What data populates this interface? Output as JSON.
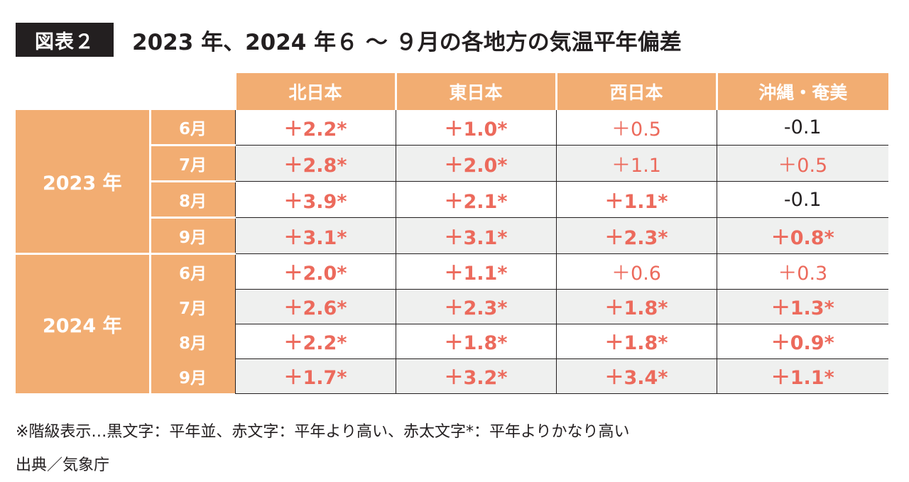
{
  "figure": {
    "badge": "図表２",
    "title": "2023 年、2024 年６ 〜 ９月の各地方の気温平年偏差"
  },
  "columns": [
    "北日本",
    "東日本",
    "西日本",
    "沖縄・奄美"
  ],
  "groups": [
    {
      "year": "2023 年",
      "rows": [
        {
          "month": "6月",
          "values": [
            {
              "text": "＋2.2*",
              "style": "strong"
            },
            {
              "text": "＋1.0*",
              "style": "strong"
            },
            {
              "text": "＋0.5",
              "style": "light"
            },
            {
              "text": "-0.1",
              "style": "plain"
            }
          ]
        },
        {
          "month": "7月",
          "values": [
            {
              "text": "＋2.8*",
              "style": "strong"
            },
            {
              "text": "＋2.0*",
              "style": "strong"
            },
            {
              "text": "＋1.1",
              "style": "light"
            },
            {
              "text": "＋0.5",
              "style": "light"
            }
          ]
        },
        {
          "month": "8月",
          "values": [
            {
              "text": "＋3.9*",
              "style": "strong"
            },
            {
              "text": "＋2.1*",
              "style": "strong"
            },
            {
              "text": "＋1.1*",
              "style": "strong"
            },
            {
              "text": "-0.1",
              "style": "plain"
            }
          ]
        },
        {
          "month": "9月",
          "values": [
            {
              "text": "＋3.1*",
              "style": "strong"
            },
            {
              "text": "＋3.1*",
              "style": "strong"
            },
            {
              "text": "＋2.3*",
              "style": "strong"
            },
            {
              "text": "＋0.8*",
              "style": "strong"
            }
          ]
        }
      ]
    },
    {
      "year": "2024 年",
      "rows": [
        {
          "month": "6月",
          "values": [
            {
              "text": "＋2.0*",
              "style": "strong"
            },
            {
              "text": "＋1.1*",
              "style": "strong"
            },
            {
              "text": "＋0.6",
              "style": "light"
            },
            {
              "text": "＋0.3",
              "style": "light"
            }
          ]
        },
        {
          "month": "7月",
          "values": [
            {
              "text": "＋2.6*",
              "style": "strong"
            },
            {
              "text": "＋2.3*",
              "style": "strong"
            },
            {
              "text": "＋1.8*",
              "style": "strong"
            },
            {
              "text": "＋1.3*",
              "style": "strong"
            }
          ]
        },
        {
          "month": "8月",
          "values": [
            {
              "text": "＋2.2*",
              "style": "strong"
            },
            {
              "text": "＋1.8*",
              "style": "strong"
            },
            {
              "text": "＋1.8*",
              "style": "strong"
            },
            {
              "text": "＋0.9*",
              "style": "strong"
            }
          ]
        },
        {
          "month": "9月",
          "values": [
            {
              "text": "＋1.7*",
              "style": "strong"
            },
            {
              "text": "＋3.2*",
              "style": "strong"
            },
            {
              "text": "＋3.4*",
              "style": "strong"
            },
            {
              "text": "＋1.1*",
              "style": "strong"
            }
          ]
        }
      ]
    }
  ],
  "notes": {
    "legend": "※階級表示…黒文字：平年並、赤文字：平年より高い、赤太文字*：平年よりかなり高い",
    "source": "出典／気象庁"
  },
  "colors": {
    "header_bg": "#f2ad72",
    "accent_red": "#ec6a5c",
    "zebra": "#eff0ef",
    "text": "#231f20"
  }
}
